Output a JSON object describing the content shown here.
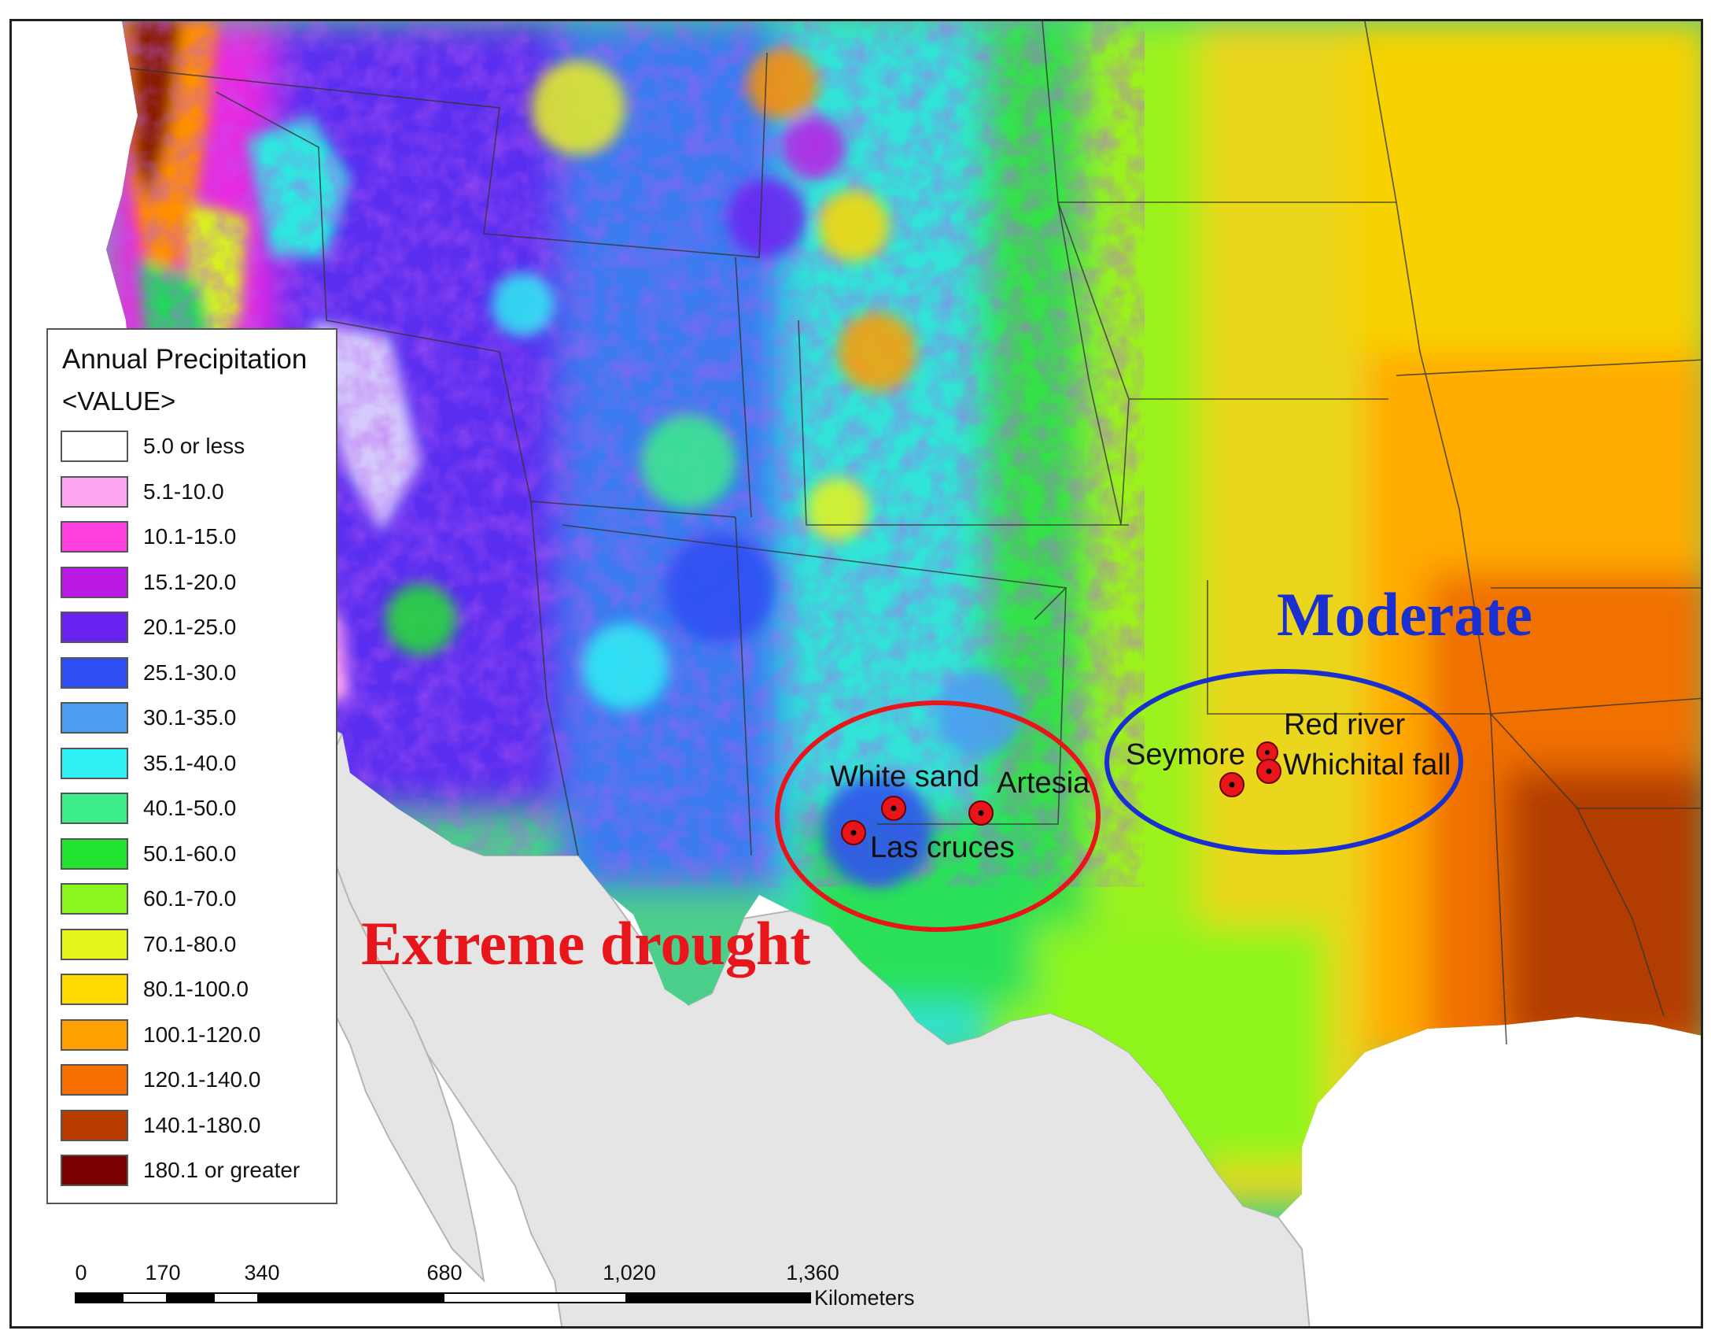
{
  "legend": {
    "title": "Annual Precipitation",
    "subtitle": "<VALUE>",
    "classes": [
      {
        "label": "5.0 or less",
        "color": "#ffffff"
      },
      {
        "label": "5.1-10.0",
        "color": "#ffa6f2"
      },
      {
        "label": "10.1-15.0",
        "color": "#ff3fe0"
      },
      {
        "label": "15.1-20.0",
        "color": "#bb1ae6"
      },
      {
        "label": "20.1-25.0",
        "color": "#6a22f0"
      },
      {
        "label": "25.1-30.0",
        "color": "#2e4df2"
      },
      {
        "label": "30.1-35.0",
        "color": "#4b9df2"
      },
      {
        "label": "35.1-40.0",
        "color": "#2ff0f2"
      },
      {
        "label": "40.1-50.0",
        "color": "#3ded8a"
      },
      {
        "label": "50.1-60.0",
        "color": "#22e330"
      },
      {
        "label": "60.1-70.0",
        "color": "#8df51e"
      },
      {
        "label": "70.1-80.0",
        "color": "#e6f51e"
      },
      {
        "label": "80.1-100.0",
        "color": "#ffd900"
      },
      {
        "label": "100.1-120.0",
        "color": "#ff9f00"
      },
      {
        "label": "120.1-140.0",
        "color": "#f57000"
      },
      {
        "label": "140.1-180.0",
        "color": "#b83c00"
      },
      {
        "label": "180.1 or greater",
        "color": "#7a0000"
      }
    ]
  },
  "places": [
    {
      "name": "White sand"
    },
    {
      "name": "Artesia"
    },
    {
      "name": "Las cruces"
    },
    {
      "name": "Seymore"
    },
    {
      "name": "Red river"
    },
    {
      "name": "Whichital fall"
    }
  ],
  "regions": {
    "drought_label": "Extreme drought",
    "drought_color": "#e8151b",
    "moderate_label": "Moderate",
    "moderate_color": "#1a2fd0"
  },
  "scale": {
    "ticks": [
      "0",
      "170",
      "340",
      "680",
      "1,020",
      "1,360"
    ],
    "unit": "Kilometers"
  },
  "colors": {
    "non_us_land": "#e5e5e5",
    "water": "#ffffff",
    "site_marker": "#e8151b"
  }
}
